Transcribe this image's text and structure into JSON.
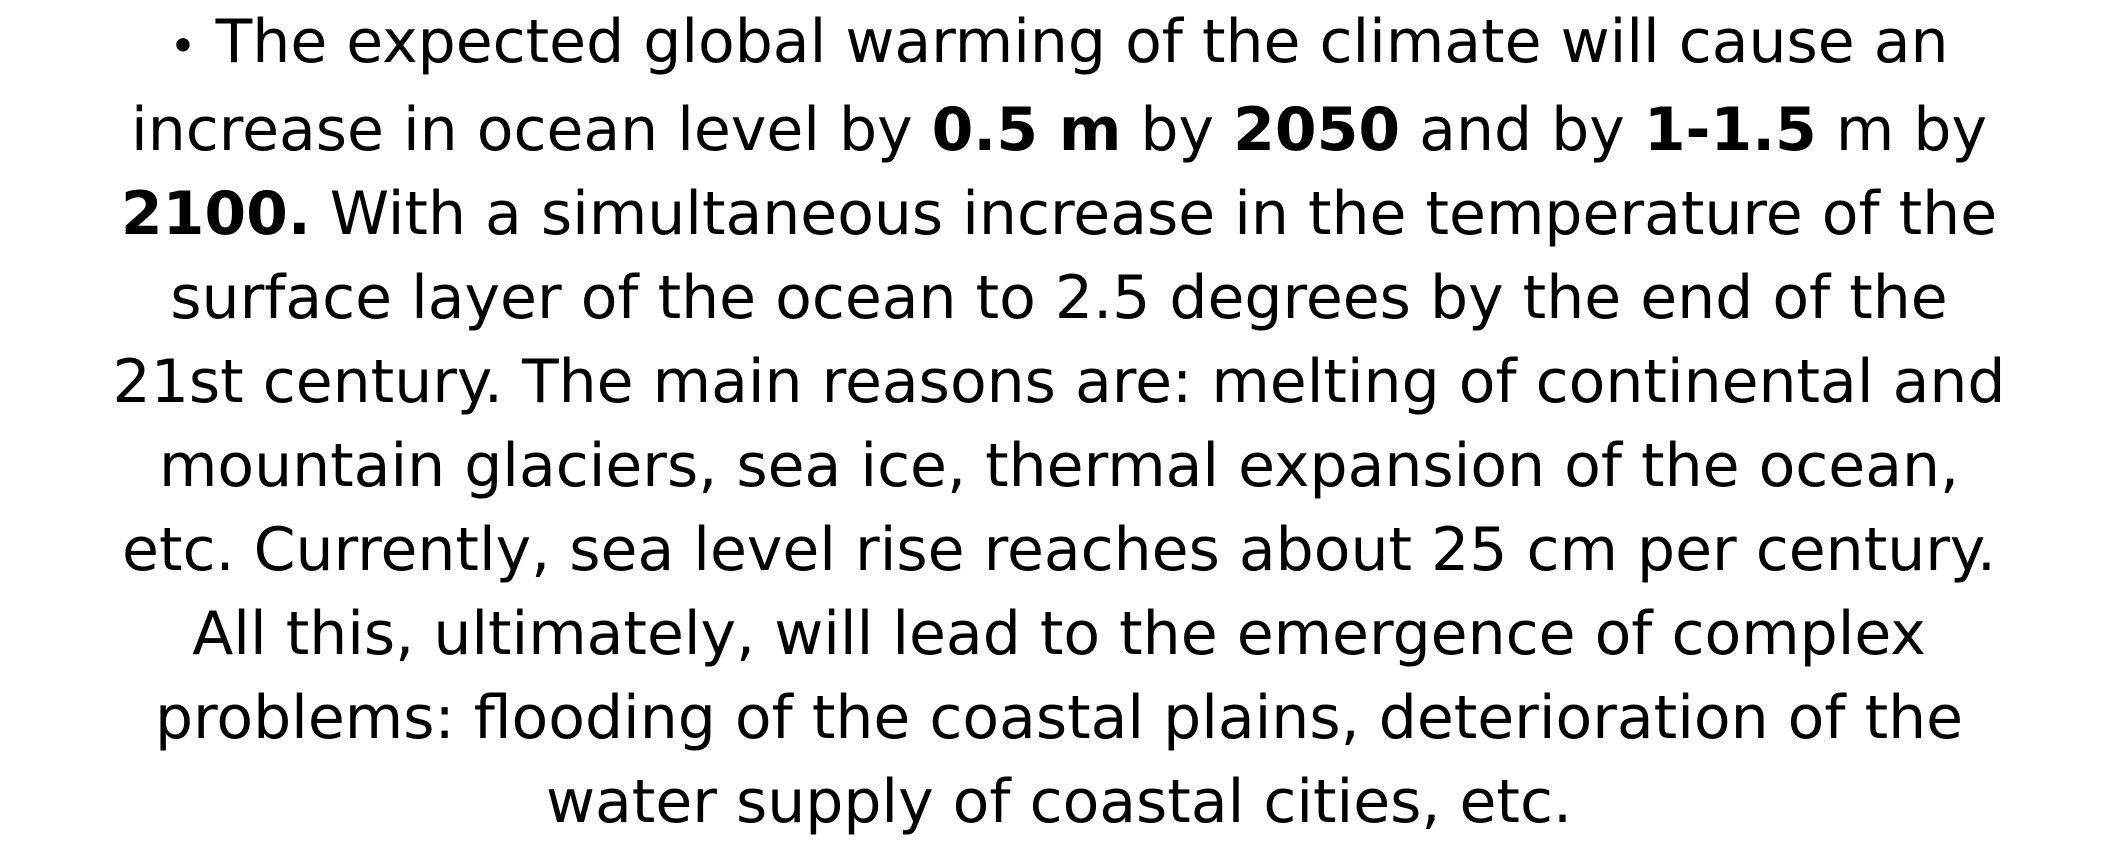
{
  "slide": {
    "bullet": "•",
    "lines": [
      {
        "segments": [
          {
            "text": "The expected global warming of the climate will cause an",
            "bold": false
          }
        ]
      },
      {
        "segments": [
          {
            "text": "increase in ocean level by ",
            "bold": false
          },
          {
            "text": "0.5 m",
            "bold": true
          },
          {
            "text": " by ",
            "bold": false
          },
          {
            "text": "2050",
            "bold": true
          },
          {
            "text": " and by ",
            "bold": false
          },
          {
            "text": "1-1.5",
            "bold": true
          },
          {
            "text": " m by",
            "bold": false
          }
        ]
      },
      {
        "segments": [
          {
            "text": "2100.",
            "bold": true
          },
          {
            "text": " With a simultaneous increase in the temperature of the",
            "bold": false
          }
        ]
      },
      {
        "segments": [
          {
            "text": "surface layer of the ocean to 2.5 degrees by the end of the",
            "bold": false
          }
        ]
      },
      {
        "segments": [
          {
            "text": "21st century. The main reasons are: melting of continental and",
            "bold": false
          }
        ]
      },
      {
        "segments": [
          {
            "text": "mountain glaciers, sea ice, thermal expansion of the ocean,",
            "bold": false
          }
        ]
      },
      {
        "segments": [
          {
            "text": "etc. Currently, sea level rise reaches about 25 cm per century.",
            "bold": false
          }
        ]
      },
      {
        "segments": [
          {
            "text": "All this, ultimately, will lead to the emergence of complex",
            "bold": false
          }
        ]
      },
      {
        "segments": [
          {
            "text": "problems: flooding of the coastal plains, deterioration of the",
            "bold": false
          }
        ]
      },
      {
        "segments": [
          {
            "text": "water supply of coastal cities, etc.",
            "bold": false
          }
        ]
      }
    ]
  }
}
